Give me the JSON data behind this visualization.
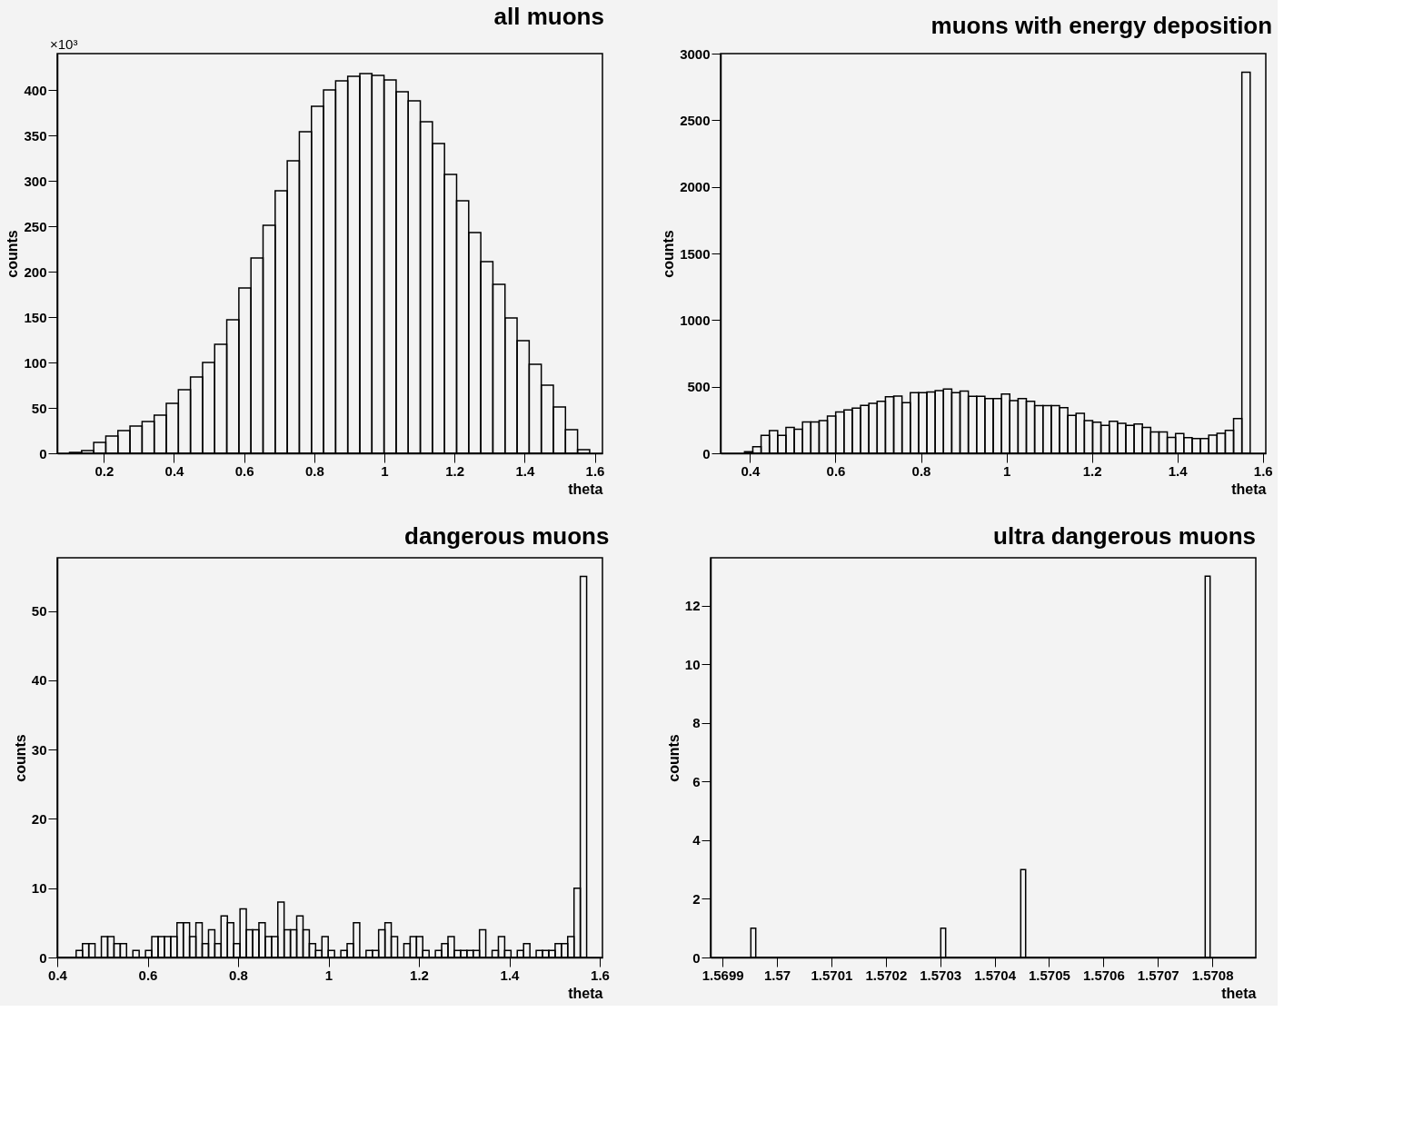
{
  "chart_data": [
    {
      "type": "histogram",
      "title": "all muons",
      "xlabel": "theta",
      "ylabel": "counts",
      "color": "#000000",
      "annotations": [
        "×10³"
      ],
      "bins": [
        0.102,
        0.1365,
        0.171,
        0.2055,
        0.24,
        0.2745,
        0.309,
        0.3435,
        0.378,
        0.4125,
        0.447,
        0.4815,
        0.516,
        0.5505,
        0.585,
        0.6195,
        0.654,
        0.6885,
        0.723,
        0.7575,
        0.792,
        0.8265,
        0.861,
        0.8955,
        0.93,
        0.9645,
        0.999,
        1.0335,
        1.068,
        1.1025,
        1.137,
        1.1715,
        1.206,
        1.2405,
        1.275,
        1.3095,
        1.344,
        1.3785,
        1.413,
        1.4475,
        1.482,
        1.5165,
        1.551,
        1.5855
      ],
      "values": [
        1,
        3,
        12,
        19,
        25,
        30,
        35,
        42,
        55,
        70,
        84,
        100,
        120,
        147,
        182,
        215,
        251,
        289,
        322,
        354,
        382,
        400,
        410,
        415,
        418,
        416,
        411,
        398,
        388,
        365,
        341,
        307,
        278,
        243,
        211,
        186,
        149,
        124,
        98,
        75,
        51,
        26,
        4
      ],
      "xlim": [
        0.067,
        1.622
      ],
      "xticks": [
        0.2,
        0.4,
        0.6,
        0.8,
        1,
        1.2,
        1.4,
        1.6
      ],
      "ylim": [
        0,
        440
      ],
      "yticks": [
        0,
        50,
        100,
        150,
        200,
        250,
        300,
        350,
        400
      ]
    },
    {
      "type": "histogram",
      "title": "muons with energy deposition",
      "xlabel": "theta",
      "ylabel": "counts",
      "color": "#000000",
      "bins": [
        0.387,
        0.4064,
        0.4258,
        0.4452,
        0.4646,
        0.484,
        0.5034,
        0.5228,
        0.5422,
        0.5616,
        0.581,
        0.6004,
        0.6198,
        0.6392,
        0.6586,
        0.678,
        0.6974,
        0.7168,
        0.7362,
        0.7556,
        0.775,
        0.7944,
        0.8138,
        0.8332,
        0.8526,
        0.872,
        0.8914,
        0.9108,
        0.9302,
        0.9496,
        0.969,
        0.9884,
        1.0078,
        1.0272,
        1.0466,
        1.066,
        1.0854,
        1.1048,
        1.1242,
        1.1436,
        1.163,
        1.1824,
        1.2018,
        1.2212,
        1.2406,
        1.26,
        1.2794,
        1.2988,
        1.3182,
        1.3376,
        1.357,
        1.3764,
        1.3958,
        1.4152,
        1.4346,
        1.454,
        1.4734,
        1.4928,
        1.5122,
        1.5316,
        1.551,
        1.5704
      ],
      "values": [
        12,
        50,
        135,
        170,
        135,
        195,
        180,
        235,
        235,
        245,
        280,
        310,
        325,
        340,
        360,
        375,
        390,
        425,
        430,
        380,
        455,
        455,
        460,
        470,
        482,
        455,
        467,
        427,
        427,
        410,
        410,
        445,
        395,
        410,
        391,
        358,
        358,
        358,
        342,
        285,
        300,
        245,
        233,
        210,
        240,
        225,
        210,
        220,
        195,
        160,
        160,
        120,
        148,
        118,
        110,
        110,
        137,
        150,
        172,
        260,
        2860
      ],
      "xlim": [
        0.331,
        1.607
      ],
      "xticks": [
        0.4,
        0.6,
        0.8,
        1,
        1.2,
        1.4,
        1.6
      ],
      "ylim": [
        0,
        3000
      ],
      "yticks": [
        0,
        500,
        1000,
        1500,
        2000,
        2500,
        3000
      ]
    },
    {
      "type": "histogram",
      "title": "dangerous muons",
      "xlabel": "theta",
      "ylabel": "counts",
      "color": "#000000",
      "bins": [
        0.4,
        0.4139,
        0.4279,
        0.4418,
        0.4558,
        0.4697,
        0.4836,
        0.4976,
        0.5115,
        0.5255,
        0.5394,
        0.5533,
        0.5673,
        0.5812,
        0.5952,
        0.6091,
        0.623,
        0.637,
        0.6509,
        0.6649,
        0.6788,
        0.6927,
        0.7067,
        0.7206,
        0.7346,
        0.7485,
        0.7624,
        0.7764,
        0.7903,
        0.8043,
        0.8182,
        0.8321,
        0.8461,
        0.86,
        0.874,
        0.8879,
        0.9018,
        0.9158,
        0.9297,
        0.9437,
        0.9576,
        0.9715,
        0.9855,
        0.9994,
        1.0134,
        1.0273,
        1.0412,
        1.0552,
        1.0691,
        1.0831,
        1.097,
        1.1109,
        1.1249,
        1.1388,
        1.1528,
        1.1667,
        1.1806,
        1.1946,
        1.2085,
        1.2225,
        1.2364,
        1.2503,
        1.2643,
        1.2782,
        1.2922,
        1.3061,
        1.32,
        1.334,
        1.3479,
        1.3619,
        1.3758,
        1.3897,
        1.4037,
        1.4176,
        1.4316,
        1.4455,
        1.4594,
        1.4734,
        1.4873,
        1.5013,
        1.5152,
        1.5291,
        1.5431,
        1.557,
        1.571
      ],
      "values": [
        0,
        0,
        0,
        1,
        2,
        2,
        0,
        3,
        3,
        2,
        2,
        0,
        1,
        0,
        1,
        3,
        3,
        3,
        3,
        5,
        5,
        3,
        5,
        2,
        4,
        2,
        6,
        5,
        2,
        7,
        4,
        4,
        5,
        3,
        3,
        8,
        4,
        4,
        6,
        4,
        2,
        1,
        3,
        1,
        0,
        1,
        2,
        5,
        0,
        1,
        1,
        4,
        5,
        3,
        0,
        2,
        3,
        3,
        1,
        0,
        1,
        2,
        3,
        1,
        1,
        1,
        1,
        4,
        0,
        1,
        3,
        1,
        0,
        1,
        2,
        0,
        1,
        1,
        1,
        2,
        2,
        3,
        10,
        55
      ],
      "xlim": [
        0.4,
        1.606
      ],
      "xticks": [
        0.4,
        0.6,
        0.8,
        1,
        1.2,
        1.4,
        1.6
      ],
      "ylim": [
        0,
        57.7
      ],
      "yticks": [
        0,
        10,
        20,
        30,
        40,
        50
      ]
    },
    {
      "type": "histogram",
      "title": "ultra dangerous muons",
      "xlabel": "theta",
      "ylabel": "counts",
      "color": "#000000",
      "bins": [
        1.569952,
        1.569961,
        1.570301,
        1.57031,
        1.570448,
        1.570457,
        1.570787,
        1.570796
      ],
      "values": [
        1,
        0,
        1,
        0,
        3,
        0,
        13
      ],
      "xlim": [
        1.569878,
        1.57088
      ],
      "xticks": [
        1.5699,
        1.57,
        1.5701,
        1.5702,
        1.5703,
        1.5704,
        1.5705,
        1.5706,
        1.5707,
        1.5708
      ],
      "ylim": [
        0,
        13.63
      ],
      "yticks": [
        0,
        2,
        4,
        6,
        8,
        10,
        12
      ]
    }
  ]
}
